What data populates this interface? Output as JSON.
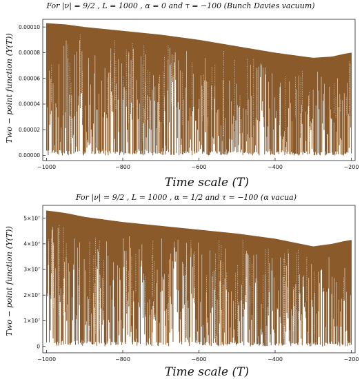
{
  "chart_data": [
    {
      "type": "area",
      "title": "For |ν| = 9/2 , L = 1000 , α = 0 and τ = −100 (Bunch Davies vacuum)",
      "xlabel": "Time scale  (T)",
      "ylabel": "Two − point function (Y(T))",
      "xlim": [
        -1010,
        -190
      ],
      "ylim": [
        -4e-06,
        0.000106
      ],
      "x_ticks": [
        -1000,
        -800,
        -600,
        -400,
        -200
      ],
      "x_tick_labels": [
        "−1000",
        "−800",
        "−600",
        "−400",
        "−200"
      ],
      "y_ticks": [
        0,
        2e-05,
        4e-05,
        6e-05,
        8e-05,
        0.0001
      ],
      "y_tick_labels": [
        "0.00000",
        "0.00002",
        "0.00004",
        "0.00006",
        "0.00008",
        "0.00010"
      ],
      "color": "#8a5a2b",
      "envelope": {
        "x": [
          -1000,
          -950,
          -900,
          -800,
          -700,
          -600,
          -500,
          -400,
          -350,
          -300,
          -250,
          -220,
          -200
        ],
        "y": [
          0.000103,
          0.000102,
          0.0001,
          9.7e-05,
          9.4e-05,
          9e-05,
          8.5e-05,
          8e-05,
          7.8e-05,
          7.6e-05,
          7.7e-05,
          7.9e-05,
          8e-05
        ]
      }
    },
    {
      "type": "area",
      "title": "For |ν| = 9/2 , L = 1000 , α = 1/2 and τ = −100 (α vacua)",
      "xlabel": "Time scale  (T)",
      "ylabel": "Two − point function (Y(T))",
      "xlim": [
        -1010,
        -190
      ],
      "ylim": [
        -2500000,
        55000000
      ],
      "x_ticks": [
        -1000,
        -800,
        -600,
        -400,
        -200
      ],
      "x_tick_labels": [
        "−1000",
        "−800",
        "−600",
        "−400",
        "−200"
      ],
      "y_ticks": [
        0,
        10000000,
        20000000,
        30000000,
        40000000,
        50000000
      ],
      "y_tick_labels": [
        "0",
        "1×10⁷",
        "2×10⁷",
        "3×10⁷",
        "4×10⁷",
        "5×10⁷"
      ],
      "color": "#8a5a2b",
      "envelope": {
        "x": [
          -1000,
          -950,
          -900,
          -800,
          -700,
          -600,
          -500,
          -400,
          -350,
          -300,
          -250,
          -220,
          -200
        ],
        "y": [
          53000000,
          52000000,
          50500000,
          48500000,
          47000000,
          45500000,
          44000000,
          42000000,
          40500000,
          39000000,
          40000000,
          41000000,
          41500000
        ]
      }
    }
  ]
}
